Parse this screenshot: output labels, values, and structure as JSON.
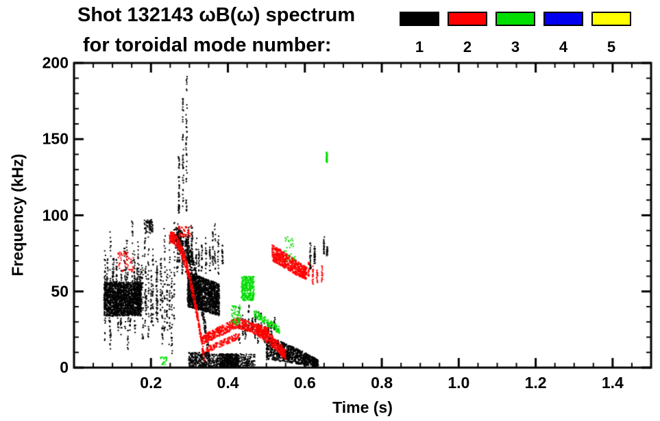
{
  "header": {
    "title": "Shot 132143 ωB(ω) spectrum",
    "subtitle": "for toroidal mode number:"
  },
  "legend": {
    "modes": [
      {
        "label": "1",
        "color": "#000000"
      },
      {
        "label": "2",
        "color": "#ff0000"
      },
      {
        "label": "3",
        "color": "#00dd00"
      },
      {
        "label": "4",
        "color": "#0000ee"
      },
      {
        "label": "5",
        "color": "#ffff00"
      }
    ]
  },
  "chart_data": {
    "type": "scatter",
    "title": "Shot 132143 ωB(ω) spectrum for toroidal mode number: 1 2 3 4 5",
    "xlabel": "Time (s)",
    "ylabel": "Frequency (kHz)",
    "xlim": [
      0.0,
      1.5
    ],
    "ylim": [
      0,
      200
    ],
    "xticks": [
      0.2,
      0.4,
      0.6,
      0.8,
      1.0,
      1.2,
      1.4
    ],
    "xtick_labels": [
      "0.2",
      "0.4",
      "0.6",
      "0.8",
      "1.0",
      "1.2",
      "1.4"
    ],
    "yticks": [
      0,
      50,
      100,
      150,
      200
    ],
    "ytick_labels": [
      "0",
      "50",
      "100",
      "150",
      "200"
    ],
    "xminor_step": 0.05,
    "yminor_step": 10,
    "grid": false,
    "legend_position": "top-right",
    "series": [
      {
        "name": "n=1",
        "color": "#000000",
        "clusters": [
          {
            "shape": "band",
            "t": [
              0.078,
              0.175
            ],
            "f": [
              34,
              56
            ],
            "n": 1600
          },
          {
            "shape": "columns",
            "t": [
              0.078,
              0.185
            ],
            "f": [
              10,
              97
            ],
            "n": 650,
            "cols": 26
          },
          {
            "shape": "columns",
            "t": [
              0.188,
              0.262
            ],
            "f": [
              4,
              96
            ],
            "n": 360,
            "cols": 13
          },
          {
            "shape": "band",
            "t": [
              0.183,
              0.205
            ],
            "f": [
              88,
              97
            ],
            "n": 70
          },
          {
            "shape": "columns",
            "t": [
              0.272,
              0.292
            ],
            "f": [
              98,
              197
            ],
            "n": 140,
            "cols": 3
          },
          {
            "shape": "chirp",
            "t": [
              0.262,
              0.352
            ],
            "f_start": [
              78,
              92
            ],
            "f_end": [
              2,
              10
            ],
            "curve": 2.2,
            "n": 420
          },
          {
            "shape": "columns",
            "t": [
              0.268,
              0.305
            ],
            "f": [
              58,
              96
            ],
            "n": 160,
            "cols": 6
          },
          {
            "shape": "chirp",
            "t": [
              0.295,
              0.378
            ],
            "f_start": [
              40,
              63
            ],
            "f_end": [
              34,
              55
            ],
            "curve": 1,
            "n": 1500
          },
          {
            "shape": "columns",
            "t": [
              0.3,
              0.385
            ],
            "f": [
              58,
              95
            ],
            "n": 200,
            "cols": 11
          },
          {
            "shape": "band",
            "t": [
              0.298,
              0.352
            ],
            "f": [
              0,
              10
            ],
            "n": 260
          },
          {
            "shape": "band",
            "t": [
              0.352,
              0.47
            ],
            "f": [
              0,
              9
            ],
            "n": 330
          },
          {
            "shape": "band",
            "t": [
              0.378,
              0.428
            ],
            "f": [
              0,
              9
            ],
            "n": 330
          },
          {
            "shape": "columns",
            "t": [
              0.43,
              0.52
            ],
            "f": [
              14,
              42
            ],
            "n": 200,
            "cols": 12
          },
          {
            "shape": "chirp",
            "t": [
              0.5,
              0.635
            ],
            "f_start": [
              5,
              20
            ],
            "f_end": [
              0,
              5
            ],
            "curve": 1.3,
            "n": 950
          },
          {
            "shape": "columns",
            "t": [
              0.615,
              0.625
            ],
            "f": [
              62,
              88
            ],
            "n": 55,
            "cols": 2
          },
          {
            "shape": "columns",
            "t": [
              0.648,
              0.66
            ],
            "f": [
              70,
              90
            ],
            "n": 40,
            "cols": 2
          }
        ]
      },
      {
        "name": "n=2",
        "color": "#ff0000",
        "clusters": [
          {
            "shape": "chirp",
            "t": [
              0.248,
              0.338
            ],
            "f_start": [
              82,
              90
            ],
            "f_end": [
              3,
              9
            ],
            "curve": 2.0,
            "n": 500
          },
          {
            "shape": "band",
            "t": [
              0.272,
              0.302
            ],
            "f": [
              86,
              93
            ],
            "n": 45
          },
          {
            "shape": "chirp",
            "t": [
              0.332,
              0.425
            ],
            "f_start": [
              15,
              21
            ],
            "f_end": [
              26,
              33
            ],
            "curve": 1,
            "n": 330
          },
          {
            "shape": "chirp",
            "t": [
              0.425,
              0.505
            ],
            "f_start": [
              26,
              33
            ],
            "f_end": [
              19,
              26
            ],
            "curve": 1,
            "n": 280
          },
          {
            "shape": "chirp",
            "t": [
              0.34,
              0.43
            ],
            "f_start": [
              9,
              13
            ],
            "f_end": [
              19,
              23
            ],
            "curve": 1,
            "n": 140
          },
          {
            "shape": "chirp",
            "t": [
              0.515,
              0.605
            ],
            "f_start": [
              70,
              81
            ],
            "f_end": [
              57,
              66
            ],
            "curve": 1,
            "n": 620
          },
          {
            "shape": "chirp",
            "t": [
              0.475,
              0.55
            ],
            "f_start": [
              21,
              29
            ],
            "f_end": [
              5,
              12
            ],
            "curve": 1.2,
            "n": 330
          },
          {
            "shape": "columns",
            "t": [
              0.598,
              0.645
            ],
            "f": [
              52,
              72
            ],
            "n": 80,
            "cols": 5
          },
          {
            "shape": "band",
            "t": [
              0.115,
              0.155
            ],
            "f": [
              63,
              76
            ],
            "n": 55
          }
        ]
      },
      {
        "name": "n=3",
        "color": "#00dd00",
        "clusters": [
          {
            "shape": "band",
            "t": [
              0.435,
              0.468
            ],
            "f": [
              44,
              60
            ],
            "n": 280
          },
          {
            "shape": "chirp",
            "t": [
              0.468,
              0.535
            ],
            "f_start": [
              33,
              38
            ],
            "f_end": [
              22,
              27
            ],
            "curve": 1,
            "n": 120
          },
          {
            "shape": "columns",
            "t": [
              0.65,
              0.66
            ],
            "f": [
              128,
              148
            ],
            "n": 35,
            "cols": 1
          },
          {
            "shape": "band",
            "t": [
              0.545,
              0.575
            ],
            "f": [
              70,
              86
            ],
            "n": 26
          },
          {
            "shape": "band",
            "t": [
              0.225,
              0.242
            ],
            "f": [
              2,
              7
            ],
            "n": 22
          },
          {
            "shape": "band",
            "t": [
              0.408,
              0.434
            ],
            "f": [
              28,
              41
            ],
            "n": 55
          }
        ]
      },
      {
        "name": "n=4",
        "color": "#0000ee",
        "clusters": []
      },
      {
        "name": "n=5",
        "color": "#ffff00",
        "clusters": []
      }
    ]
  }
}
